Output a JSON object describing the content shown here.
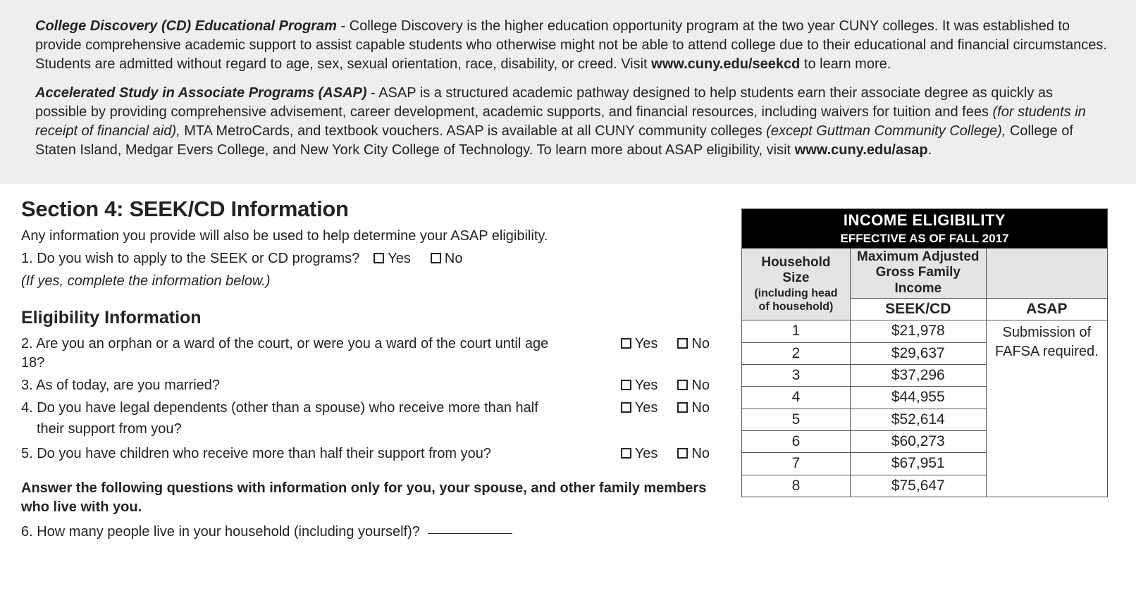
{
  "gray_box": {
    "cd": {
      "title": "College Discovery (CD) Educational Program",
      "body_a": " - College Discovery is the higher education opportunity program at the two year CUNY colleges. It was established to provide comprehensive academic support to assist capable students who otherwise might not be able to attend college due to their educational and financial circumstances. Students are admitted without regard to age, sex, sexual orientation, race, disability, or creed. Visit ",
      "link": "www.cuny.edu/seekcd",
      "body_b": " to learn more."
    },
    "asap": {
      "title": "Accelerated Study in Associate Programs (ASAP)",
      "body_a": " - ASAP is a structured academic pathway designed to help students earn their associate degree as quickly as possible by providing comprehensive advisement, career development, academic supports, and financial resources, including waivers for tuition and fees ",
      "italic_a": "(for students in receipt of financial aid),",
      "body_b": " MTA MetroCards, and textbook vouchers. ASAP is available at all CUNY community colleges ",
      "italic_b": "(except Guttman Community College),",
      "body_c": " College of Staten Island, Medgar Evers College, and New York City College of Technology. To learn more about ASAP eligibility, visit ",
      "link": "www.cuny.edu/asap",
      "body_d": "."
    }
  },
  "section": {
    "title": "Section 4: SEEK/CD Information",
    "intro": "Any information you provide will also be used to help determine your ASAP eligibility.",
    "q1": "1. Do you wish to apply to the SEEK or CD programs?",
    "q1_note": "(If yes, complete the information below.)",
    "sub_heading": "Eligibility Information",
    "q2": "2. Are you an orphan or a ward of the court, or were you a ward of the court until age 18?",
    "q3": "3. As of today, are you married?",
    "q4a": "4. Do you have legal dependents (other than a spouse) who receive more than half",
    "q4b": "their support from you?",
    "q5": "5. Do you have children who receive more than half their support from you?",
    "instr": "Answer the following questions with information only for you, your spouse, and other family members who live with you.",
    "q6": "6. How many people live in your household (including yourself)?"
  },
  "yn": {
    "yes": "Yes",
    "no": "No"
  },
  "table": {
    "header_title": "INCOME ELIGIBILITY",
    "header_sub": "EFFECTIVE AS OF FALL 2017",
    "col1_a": "Household Size",
    "col1_b": "(including head of household)",
    "col2": "Maximum Adjusted Gross Family Income",
    "seek_label": "SEEK/CD",
    "asap_label": "ASAP",
    "asap_note": "Submission of FAFSA required.",
    "rows": [
      {
        "size": "1",
        "income": "$21,978"
      },
      {
        "size": "2",
        "income": "$29,637"
      },
      {
        "size": "3",
        "income": "$37,296"
      },
      {
        "size": "4",
        "income": "$44,955"
      },
      {
        "size": "5",
        "income": "$52,614"
      },
      {
        "size": "6",
        "income": "$60,273"
      },
      {
        "size": "7",
        "income": "$67,951"
      },
      {
        "size": "8",
        "income": "$75,647"
      }
    ],
    "colors": {
      "header_bg": "#000000",
      "header_fg": "#ffffff",
      "subhead_bg": "#e4e4e4",
      "border": "#555555"
    }
  }
}
